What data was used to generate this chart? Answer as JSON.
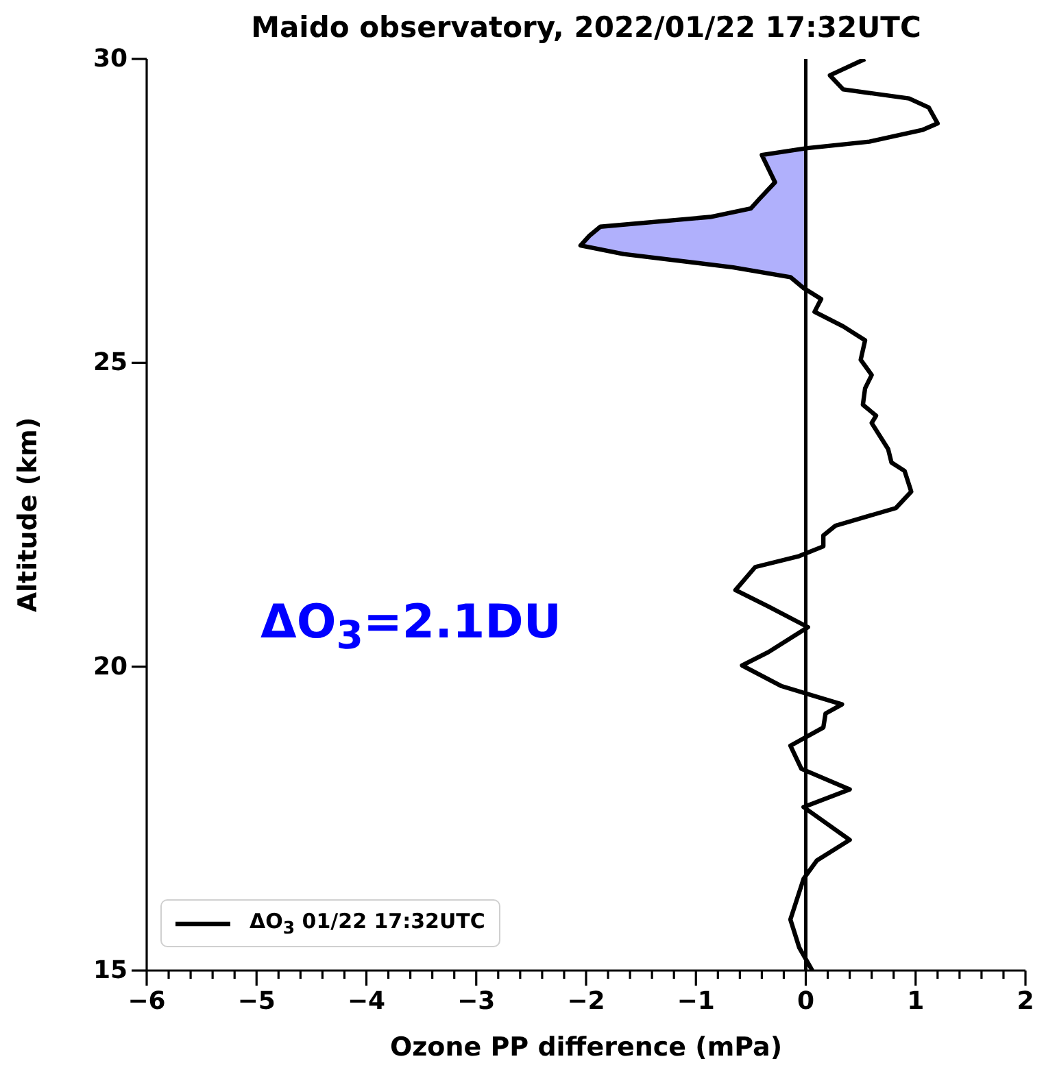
{
  "chart_data": {
    "type": "line",
    "title": "Maido observatory, 2022/01/22 17:32UTC",
    "xlabel": "Ozone PP difference (mPa)",
    "ylabel": "Altitude (km)",
    "annotations": [
      "ΔO$_{3}$=2.1DU"
    ],
    "xlim": [
      -6,
      2
    ],
    "ylim": [
      15,
      30
    ],
    "xticks": [
      -6,
      {
        "value": -5.8,
        "label": null
      },
      {
        "value": -5.6,
        "label": null
      },
      {
        "value": -5.4,
        "label": null
      },
      {
        "value": -5.2,
        "label": null
      },
      -5,
      {
        "value": -4.8,
        "label": null
      },
      {
        "value": -4.6,
        "label": null
      },
      {
        "value": -4.4,
        "label": null
      },
      {
        "value": -4.2,
        "label": null
      },
      -4,
      {
        "value": -3.8,
        "label": null
      },
      {
        "value": -3.6,
        "label": null
      },
      {
        "value": -3.4,
        "label": null
      },
      {
        "value": -3.2,
        "label": null
      },
      -3,
      {
        "value": -2.8,
        "label": null
      },
      {
        "value": -2.6,
        "label": null
      },
      {
        "value": -2.4,
        "label": null
      },
      {
        "value": -2.2,
        "label": null
      },
      -2,
      {
        "value": -1.8,
        "label": null
      },
      {
        "value": -1.6,
        "label": null
      },
      {
        "value": -1.4,
        "label": null
      },
      {
        "value": -1.2,
        "label": null
      },
      -1,
      {
        "value": -0.8,
        "label": null
      },
      {
        "value": -0.6,
        "label": null
      },
      {
        "value": -0.4,
        "label": null
      },
      {
        "value": -0.2,
        "label": null
      },
      0,
      {
        "value": 0.2,
        "label": null
      },
      {
        "value": 0.4,
        "label": null
      },
      {
        "value": 0.6,
        "label": null
      },
      {
        "value": 0.8,
        "label": null
      },
      1,
      {
        "value": 1.2,
        "label": null
      },
      {
        "value": 1.4,
        "label": null
      },
      {
        "value": 1.6,
        "label": null
      },
      {
        "value": 1.8,
        "label": null
      },
      2
    ],
    "yticks": [
      15,
      20,
      25,
      30
    ],
    "legend": "bottom left",
    "ref_lines": [
      {
        "axis": "x",
        "value": 0,
        "color": "#000000"
      }
    ],
    "series": [
      {
        "type": "area",
        "color": "#b0b0fc",
        "x": [
          0,
          -0.4,
          -0.28,
          -0.42,
          -0.5,
          -0.87,
          -1.87,
          -1.97,
          -2.05,
          -1.66,
          -0.66,
          -0.14,
          0
        ],
        "values": [
          28.53,
          28.42,
          27.97,
          27.7,
          27.54,
          27.4,
          27.24,
          27.09,
          26.93,
          26.79,
          26.57,
          26.41,
          26.23
        ]
      },
      {
        "name": "ΔO$_{3}$ 01/22 17:32UTC",
        "color": "#000000",
        "x": [
          0.54,
          0.22,
          0.34,
          0.94,
          1.12,
          1.2,
          1.06,
          0.58,
          0,
          -0.4,
          -0.28,
          -0.42,
          -0.5,
          -0.87,
          -1.87,
          -1.97,
          -2.05,
          -1.66,
          -0.66,
          -0.14,
          -0.02,
          0.14,
          0.08,
          0.34,
          0.54,
          0.5,
          0.6,
          0.54,
          0.52,
          0.64,
          0.6,
          0.75,
          0.78,
          0.9,
          0.96,
          0.82,
          0.27,
          0.16,
          0.16,
          -0.06,
          -0.46,
          -0.64,
          -0.34,
          0.02,
          -0.34,
          -0.58,
          -0.22,
          0.33,
          0.18,
          0.16,
          -0.14,
          -0.04,
          0.4,
          -0.02,
          0.4,
          0.1,
          -0.02,
          -0.14,
          -0.06,
          0.06
        ],
        "values": [
          30,
          29.73,
          29.5,
          29.35,
          29.2,
          28.94,
          28.83,
          28.64,
          28.53,
          28.42,
          27.97,
          27.7,
          27.54,
          27.4,
          27.24,
          27.09,
          26.93,
          26.79,
          26.57,
          26.41,
          26.23,
          26.05,
          25.84,
          25.6,
          25.37,
          25.05,
          24.8,
          24.58,
          24.31,
          24.13,
          24.01,
          23.58,
          23.36,
          23.22,
          22.88,
          22.61,
          22.32,
          22.16,
          21.98,
          21.82,
          21.64,
          21.26,
          20.99,
          20.65,
          20.24,
          20.02,
          19.68,
          19.38,
          19.23,
          19.0,
          18.7,
          18.32,
          17.98,
          17.69,
          17.15,
          16.81,
          16.51,
          15.84,
          15.38,
          15
        ]
      }
    ]
  }
}
